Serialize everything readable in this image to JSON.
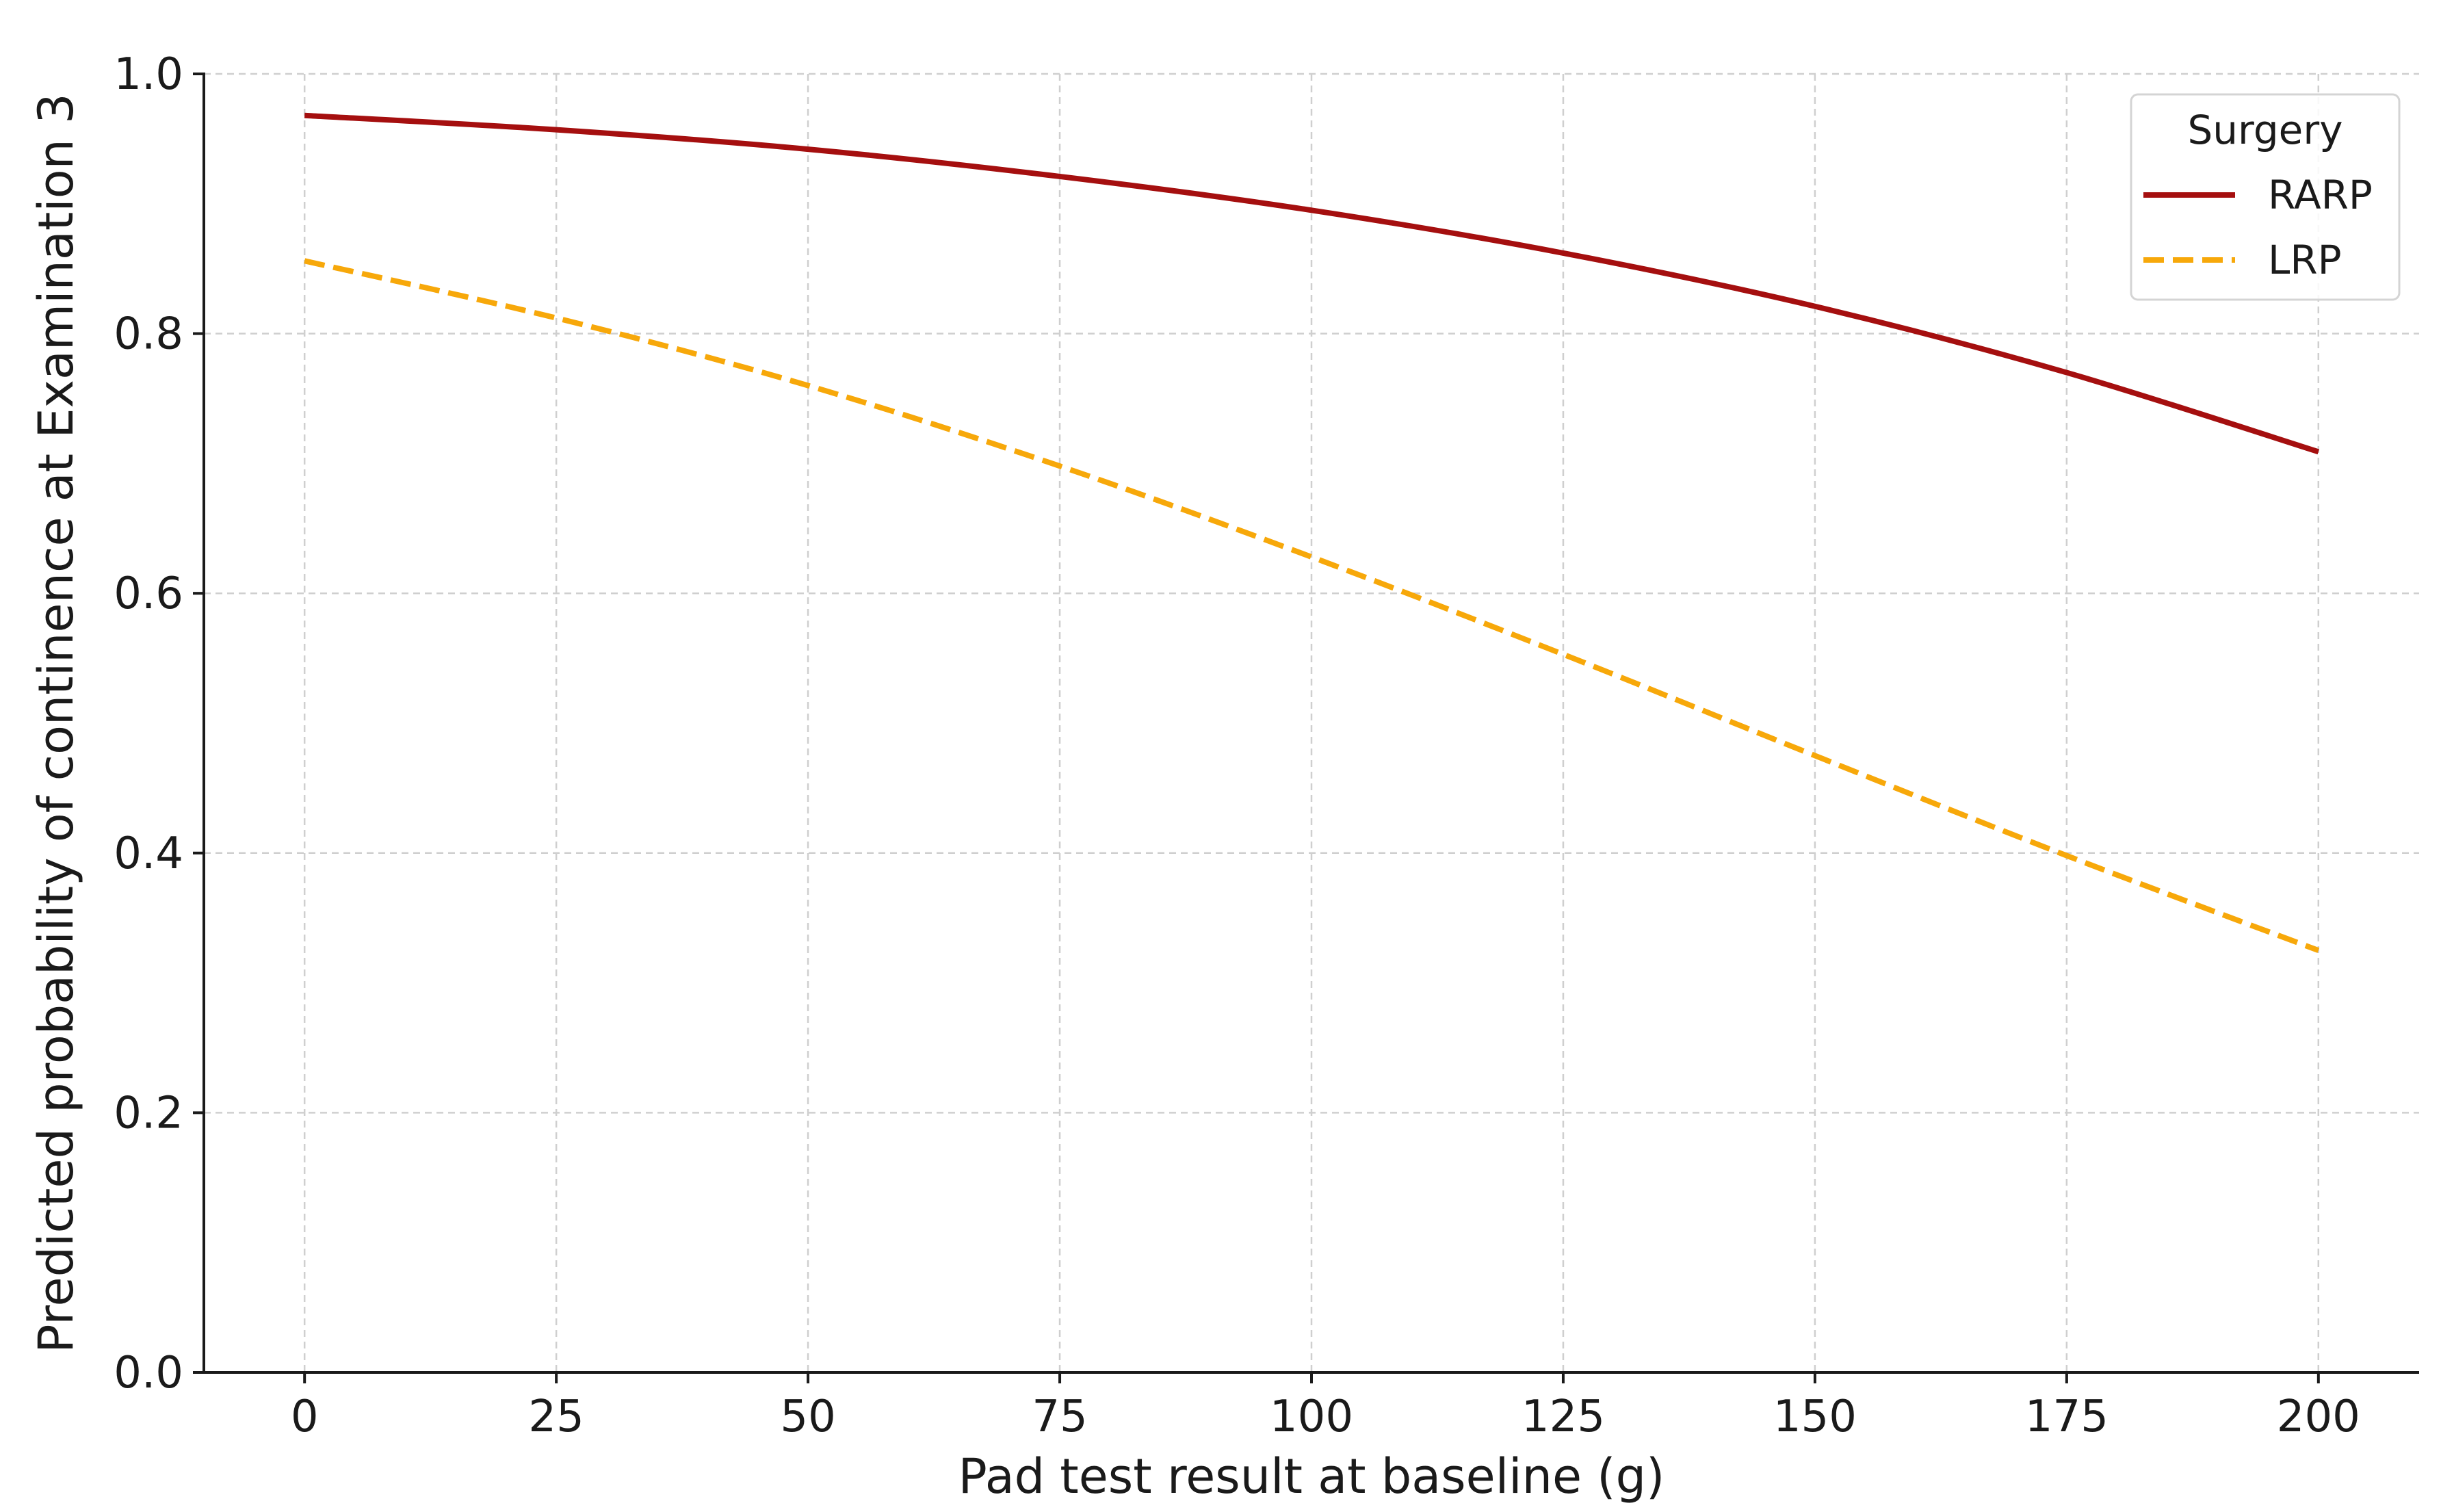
{
  "chart_data": {
    "type": "line",
    "title": "",
    "xlabel": "Pad test result at baseline (g)",
    "ylabel": "Predicted probability of continence at Examination 3",
    "xlim": [
      -10,
      210
    ],
    "ylim": [
      0.0,
      1.0
    ],
    "xticks": [
      0,
      25,
      50,
      75,
      100,
      125,
      150,
      175,
      200
    ],
    "yticks": [
      0.0,
      0.2,
      0.4,
      0.6,
      0.8,
      1.0
    ],
    "xtick_labels": [
      "0",
      "25",
      "50",
      "75",
      "100",
      "125",
      "150",
      "175",
      "200"
    ],
    "ytick_labels": [
      "0.0",
      "0.2",
      "0.4",
      "0.6",
      "0.8",
      "1.0"
    ],
    "grid": true,
    "legend": {
      "title": "Surgery",
      "position": "top-right"
    },
    "x": [
      0,
      25,
      50,
      75,
      100,
      125,
      150,
      175,
      200
    ],
    "series": [
      {
        "name": "RARP",
        "color": "#a50f0f",
        "style": "solid",
        "values": [
          0.968,
          0.957,
          0.942,
          0.921,
          0.895,
          0.862,
          0.821,
          0.77,
          0.709
        ]
      },
      {
        "name": "LRP",
        "color": "#f7a80a",
        "style": "dashed",
        "values": [
          0.856,
          0.812,
          0.76,
          0.698,
          0.628,
          0.553,
          0.475,
          0.398,
          0.325
        ]
      }
    ]
  }
}
